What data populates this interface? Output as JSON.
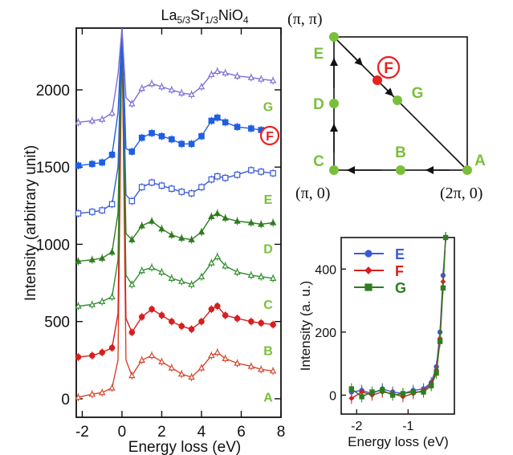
{
  "chart_data": [
    {
      "type": "line",
      "title": "La5/3Sr1/3NiO4",
      "title_parts": {
        "base1": "La",
        "sub1": "5/3",
        "base2": "Sr",
        "sub2": "1/3",
        "base3": "NiO",
        "sub3": "4"
      },
      "xlabel": "Energy loss (eV)",
      "ylabel": "Intensity (arbitrary unit)",
      "xlim": [
        -2.3,
        8.0
      ],
      "ylim": [
        -120,
        2400
      ],
      "xticks": [
        -2,
        0,
        2,
        4,
        6,
        8
      ],
      "yticks": [
        0,
        500,
        1000,
        1500,
        2000
      ],
      "grid": false,
      "legend": "labels at right end of each curve",
      "series": [
        {
          "name": "A",
          "color": "#d6452b",
          "marker": "open-triangle",
          "offset": 0,
          "x": [
            -2.2,
            -1.5,
            -1.0,
            -0.5,
            -0.2,
            0,
            0.2,
            0.5,
            1.0,
            1.5,
            2.0,
            2.5,
            3.0,
            3.5,
            4.0,
            4.5,
            4.8,
            5.2,
            5.8,
            6.5,
            7.0,
            7.6
          ],
          "y": [
            10,
            30,
            40,
            70,
            250,
            2400,
            250,
            150,
            250,
            280,
            240,
            200,
            160,
            140,
            200,
            280,
            300,
            260,
            230,
            210,
            190,
            180
          ]
        },
        {
          "name": "B",
          "color": "#d81e1e",
          "marker": "filled-circle",
          "offset": 280,
          "x": [
            -2.2,
            -1.5,
            -1.0,
            -0.5,
            -0.2,
            0,
            0.2,
            0.5,
            1.0,
            1.5,
            2.0,
            2.5,
            3.0,
            3.5,
            4.0,
            4.5,
            4.8,
            5.2,
            5.8,
            6.5,
            7.0,
            7.6
          ],
          "y": [
            270,
            280,
            300,
            330,
            550,
            2400,
            520,
            430,
            530,
            580,
            540,
            500,
            470,
            450,
            500,
            580,
            600,
            540,
            520,
            500,
            490,
            480
          ]
        },
        {
          "name": "C",
          "color": "#2e8b2e",
          "marker": "open-triangle",
          "offset": 600,
          "x": [
            -2.2,
            -1.5,
            -1.0,
            -0.5,
            -0.2,
            0,
            0.2,
            0.5,
            1.0,
            1.5,
            2.0,
            2.5,
            3.0,
            3.5,
            4.0,
            4.5,
            4.8,
            5.2,
            5.8,
            6.5,
            7.0,
            7.6
          ],
          "y": [
            600,
            610,
            630,
            660,
            900,
            2400,
            800,
            740,
            830,
            850,
            820,
            780,
            760,
            740,
            790,
            880,
            920,
            860,
            820,
            800,
            790,
            780
          ]
        },
        {
          "name": "D",
          "color": "#2e7d1f",
          "marker": "filled-triangle",
          "offset": 900,
          "x": [
            -2.2,
            -1.5,
            -1.0,
            -0.5,
            -0.2,
            0,
            0.2,
            0.5,
            1.0,
            1.5,
            2.0,
            2.5,
            3.0,
            3.5,
            4.0,
            4.5,
            4.8,
            5.2,
            5.8,
            6.5,
            7.0,
            7.6
          ],
          "y": [
            890,
            900,
            910,
            950,
            1200,
            2400,
            1070,
            1030,
            1120,
            1150,
            1100,
            1060,
            1040,
            1030,
            1080,
            1180,
            1200,
            1170,
            1150,
            1140,
            1130,
            1140
          ]
        },
        {
          "name": "E",
          "color": "#3a5bd6",
          "marker": "open-square",
          "offset": 1200,
          "x": [
            -2.2,
            -1.5,
            -1.0,
            -0.5,
            -0.2,
            0,
            0.2,
            0.5,
            1.0,
            1.5,
            2.0,
            2.5,
            3.0,
            3.5,
            4.0,
            4.5,
            4.8,
            5.2,
            5.8,
            6.5,
            7.0,
            7.6
          ],
          "y": [
            1200,
            1210,
            1220,
            1260,
            1500,
            2400,
            1320,
            1280,
            1370,
            1400,
            1380,
            1360,
            1340,
            1330,
            1370,
            1420,
            1440,
            1430,
            1450,
            1480,
            1470,
            1460
          ]
        },
        {
          "name": "F",
          "color": "#1f5fe0",
          "marker": "filled-square",
          "offset": 1500,
          "x": [
            -2.2,
            -1.5,
            -1.0,
            -0.5,
            -0.2,
            0,
            0.2,
            0.5,
            1.0,
            1.5,
            2.0,
            2.5,
            3.0,
            3.5,
            4.0,
            4.5,
            4.8,
            5.2,
            5.8,
            6.5,
            7.0,
            7.6
          ],
          "y": [
            1510,
            1520,
            1530,
            1580,
            1850,
            2400,
            1620,
            1600,
            1690,
            1720,
            1700,
            1680,
            1650,
            1650,
            1700,
            1800,
            1820,
            1790,
            1760,
            1750,
            1740,
            1730
          ]
        },
        {
          "name": "G",
          "color": "#7b6fd6",
          "marker": "open-triangle",
          "offset": 1800,
          "x": [
            -2.2,
            -1.5,
            -1.0,
            -0.5,
            -0.2,
            0,
            0.2,
            0.5,
            1.0,
            1.5,
            2.0,
            2.5,
            3.0,
            3.5,
            4.0,
            4.5,
            4.8,
            5.2,
            5.8,
            6.5,
            7.0,
            7.6
          ],
          "y": [
            1790,
            1800,
            1810,
            1850,
            2100,
            2400,
            1950,
            1910,
            2010,
            2040,
            2020,
            2000,
            1980,
            1970,
            2020,
            2100,
            2120,
            2110,
            2090,
            2080,
            2070,
            2060
          ]
        }
      ]
    },
    {
      "type": "diagram",
      "points": [
        {
          "name": "A",
          "color": "#78c03a"
        },
        {
          "name": "B",
          "color": "#78c03a"
        },
        {
          "name": "C",
          "color": "#78c03a"
        },
        {
          "name": "D",
          "color": "#78c03a"
        },
        {
          "name": "E",
          "color": "#78c03a"
        },
        {
          "name": "F",
          "color": "#e8201f"
        },
        {
          "name": "G",
          "color": "#78c03a"
        }
      ],
      "corner_labels": {
        "top_left": "(π, π)",
        "bottom_left": "(π, 0)",
        "bottom_right": "(2π, 0)"
      }
    },
    {
      "type": "line",
      "xlabel": "Energy loss (eV)",
      "ylabel": "Intensity (a. u.)",
      "xlim": [
        -2.3,
        -0.1
      ],
      "ylim": [
        -60,
        500
      ],
      "xticks": [
        -2,
        -1
      ],
      "yticks": [
        0,
        200,
        400
      ],
      "grid": false,
      "legend": "top-left",
      "series": [
        {
          "name": "E",
          "color": "#3a5bd6",
          "marker": "filled-circle",
          "x": [
            -2.1,
            -1.9,
            -1.7,
            -1.5,
            -1.3,
            -1.1,
            -0.9,
            -0.7,
            -0.55,
            -0.45,
            -0.38,
            -0.32,
            -0.27
          ],
          "y": [
            10,
            15,
            5,
            20,
            10,
            5,
            15,
            20,
            40,
            90,
            200,
            380,
            500
          ]
        },
        {
          "name": "F",
          "color": "#d81e1e",
          "marker": "filled-diamond",
          "x": [
            -2.1,
            -1.9,
            -1.7,
            -1.5,
            -1.3,
            -1.1,
            -0.9,
            -0.7,
            -0.55,
            -0.45,
            -0.38,
            -0.32,
            -0.27
          ],
          "y": [
            -10,
            10,
            0,
            10,
            5,
            -5,
            5,
            15,
            35,
            80,
            180,
            360,
            500
          ]
        },
        {
          "name": "G",
          "color": "#2e7d1f",
          "marker": "filled-square",
          "x": [
            -2.1,
            -1.9,
            -1.7,
            -1.5,
            -1.3,
            -1.1,
            -0.9,
            -0.7,
            -0.55,
            -0.45,
            -0.38,
            -0.32,
            -0.27
          ],
          "y": [
            20,
            -5,
            10,
            15,
            0,
            5,
            10,
            10,
            30,
            70,
            170,
            340,
            500
          ]
        }
      ]
    }
  ]
}
